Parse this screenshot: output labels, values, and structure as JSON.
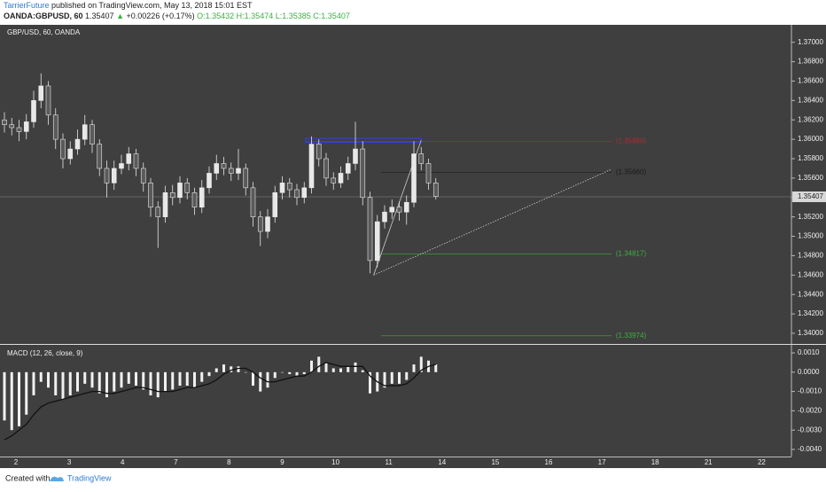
{
  "header": {
    "author": "TarrierFuture",
    "published": "published on TradingView.com, May 13, 2018 15:01 EST",
    "symbol": "OANDA:GBPUSD, 60",
    "last": "1.35407",
    "arrow": "▲",
    "change": "+0.00226 (+0.17%)",
    "open": "O:1.35432",
    "high": "H:1.35474",
    "low": "L:1.35385",
    "close": "C:1.35407"
  },
  "footer": {
    "created": "Created with",
    "brand": "TradingView"
  },
  "chart_data": [
    {
      "type": "candlestick",
      "title": "GBP/USD, 60, OANDA",
      "x_labels": [
        "2",
        "3",
        "4",
        "7",
        "8",
        "9",
        "10",
        "11",
        "14",
        "15",
        "16",
        "17",
        "18",
        "21",
        "22"
      ],
      "open": [
        1.362,
        1.3615,
        1.3612,
        1.3608,
        1.3618,
        1.364,
        1.3655,
        1.3625,
        1.36,
        1.358,
        1.359,
        1.36,
        1.3615,
        1.3595,
        1.357,
        1.3555,
        1.357,
        1.3575,
        1.3585,
        1.357,
        1.3555,
        1.353,
        1.352,
        1.3545,
        1.354,
        1.3555,
        1.3545,
        1.353,
        1.355,
        1.3565,
        1.3575,
        1.357,
        1.3565,
        1.357,
        1.355,
        1.352,
        1.3505,
        1.352,
        1.3545,
        1.3555,
        1.3548,
        1.354,
        1.355,
        1.3595,
        1.358,
        1.356,
        1.3555,
        1.3565,
        1.3575,
        1.359,
        1.354,
        1.3475,
        1.3515,
        1.3525,
        1.353,
        1.3525,
        1.3535,
        1.3585,
        1.3575,
        1.3555
      ],
      "high": [
        1.3628,
        1.3622,
        1.362,
        1.3626,
        1.365,
        1.3668,
        1.366,
        1.3632,
        1.3606,
        1.3598,
        1.361,
        1.3625,
        1.362,
        1.36,
        1.3578,
        1.3578,
        1.3584,
        1.3592,
        1.359,
        1.3576,
        1.356,
        1.3536,
        1.3552,
        1.3553,
        1.3562,
        1.356,
        1.355,
        1.3558,
        1.3572,
        1.3584,
        1.3582,
        1.3576,
        1.359,
        1.3575,
        1.3556,
        1.3526,
        1.3528,
        1.3552,
        1.3562,
        1.356,
        1.3554,
        1.3556,
        1.3603,
        1.36,
        1.3586,
        1.3566,
        1.3572,
        1.3582,
        1.3618,
        1.3598,
        1.3546,
        1.3522,
        1.3532,
        1.3538,
        1.3536,
        1.3542,
        1.3598,
        1.3592,
        1.358,
        1.356
      ],
      "low": [
        1.3607,
        1.3604,
        1.3598,
        1.36,
        1.3612,
        1.3632,
        1.3615,
        1.359,
        1.357,
        1.3574,
        1.3584,
        1.3594,
        1.3586,
        1.3562,
        1.354,
        1.3548,
        1.3564,
        1.3568,
        1.3562,
        1.3546,
        1.352,
        1.3488,
        1.3514,
        1.3532,
        1.3534,
        1.3538,
        1.3522,
        1.3524,
        1.3544,
        1.3558,
        1.3563,
        1.3557,
        1.3558,
        1.3542,
        1.351,
        1.349,
        1.3498,
        1.3514,
        1.3538,
        1.354,
        1.3532,
        1.3534,
        1.3544,
        1.3572,
        1.3552,
        1.3548,
        1.355,
        1.3558,
        1.3568,
        1.3532,
        1.3462,
        1.3468,
        1.3508,
        1.3518,
        1.3516,
        1.3512,
        1.353,
        1.3568,
        1.3548,
        1.3538
      ],
      "close": [
        1.3615,
        1.3612,
        1.3608,
        1.3618,
        1.364,
        1.3655,
        1.3625,
        1.36,
        1.358,
        1.359,
        1.36,
        1.3615,
        1.3595,
        1.357,
        1.3555,
        1.357,
        1.3575,
        1.3585,
        1.357,
        1.3555,
        1.353,
        1.352,
        1.3545,
        1.354,
        1.3555,
        1.3545,
        1.353,
        1.355,
        1.3565,
        1.3575,
        1.357,
        1.3565,
        1.357,
        1.355,
        1.352,
        1.3505,
        1.352,
        1.3545,
        1.3555,
        1.3548,
        1.354,
        1.355,
        1.3595,
        1.358,
        1.356,
        1.3555,
        1.3565,
        1.3575,
        1.359,
        1.354,
        1.3475,
        1.3515,
        1.3525,
        1.353,
        1.3525,
        1.3535,
        1.3585,
        1.3575,
        1.3555,
        1.3541
      ],
      "color": "#e8e8e8",
      "ylim": [
        1.3389,
        1.3718
      ],
      "yticks": [
        {
          "value": 1.37,
          "label": "1.37000"
        },
        {
          "value": 1.368,
          "label": "1.36800"
        },
        {
          "value": 1.366,
          "label": "1.36600"
        },
        {
          "value": 1.364,
          "label": "1.36400"
        },
        {
          "value": 1.362,
          "label": "1.36200"
        },
        {
          "value": 1.36,
          "label": "1.36000"
        },
        {
          "value": 1.358,
          "label": "1.35800"
        },
        {
          "value": 1.356,
          "label": "1.35600"
        },
        {
          "value": 1.354,
          "label": "1.35400"
        },
        {
          "value": 1.352,
          "label": "1.35200"
        },
        {
          "value": 1.35,
          "label": "1.35000"
        },
        {
          "value": 1.348,
          "label": "1.34800"
        },
        {
          "value": 1.346,
          "label": "1.34600"
        },
        {
          "value": 1.344,
          "label": "1.34400"
        },
        {
          "value": 1.342,
          "label": "1.34200"
        },
        {
          "value": 1.34,
          "label": "1.34000"
        }
      ],
      "last_price": 1.35407,
      "levels": [
        {
          "value": 1.3598,
          "label": "(1.35980)",
          "color": "#a33232"
        },
        {
          "value": 1.3566,
          "label": "(1.35660)",
          "color": "#1a1a1a"
        },
        {
          "value": 1.34817,
          "label": "(1.34817)",
          "color": "#3cb043"
        },
        {
          "value": 1.33974,
          "label": "(1.33974)",
          "color": "#3cb043"
        }
      ],
      "rectangle": {
        "top": 1.3601,
        "bottom": 1.3597,
        "color": "#3a3adf"
      },
      "trendlines": [
        {
          "from": [
            50.5,
            1.346
          ],
          "to": [
            83,
            1.3569
          ]
        },
        {
          "from": [
            50.5,
            1.346
          ],
          "to": [
            57,
            1.3599
          ]
        }
      ]
    },
    {
      "type": "macd",
      "title": "MACD (12, 26, close, 9)",
      "histogram": [
        -0.0025,
        -0.003,
        -0.0028,
        -0.0022,
        -0.0012,
        -0.0005,
        -0.0008,
        -0.0012,
        -0.0014,
        -0.0012,
        -0.001,
        -0.0006,
        -0.0008,
        -0.0011,
        -0.0013,
        -0.001,
        -0.0008,
        -0.0006,
        -0.0007,
        -0.0009,
        -0.0012,
        -0.0013,
        -0.001,
        -0.0009,
        -0.0007,
        -0.0007,
        -0.0008,
        -0.0005,
        -0.0002,
        0.0002,
        0.0004,
        0.0003,
        0.0003,
        0,
        -0.0007,
        -0.001,
        -0.0008,
        -0.0003,
        0,
        -0.0001,
        -0.0002,
        -0.0001,
        0.0006,
        0.0008,
        0.0005,
        0.0002,
        0.0002,
        0.0003,
        0.0005,
        0.0001,
        -0.0011,
        -0.001,
        -0.0008,
        -0.0006,
        -0.0006,
        -0.0004,
        0.0004,
        0.0008,
        0.0006,
        0.0004
      ],
      "signal": [
        -0.0035,
        -0.0033,
        -0.003,
        -0.0027,
        -0.0022,
        -0.0018,
        -0.0016,
        -0.0015,
        -0.0014,
        -0.0013,
        -0.0012,
        -0.0011,
        -0.001,
        -0.001,
        -0.0011,
        -0.0011,
        -0.001,
        -0.0009,
        -0.0008,
        -0.0008,
        -0.0009,
        -0.001,
        -0.001,
        -0.001,
        -0.0009,
        -0.0008,
        -0.0008,
        -0.0007,
        -0.0006,
        -0.0004,
        -0.0001,
        0.0001,
        0.0002,
        0.0002,
        0,
        -0.0003,
        -0.0005,
        -0.0005,
        -0.0004,
        -0.0003,
        -0.0002,
        -0.0002,
        0,
        0.0003,
        0.0005,
        0.0004,
        0.0003,
        0.0003,
        0.0003,
        0.0003,
        -0.0002,
        -0.0005,
        -0.0007,
        -0.0007,
        -0.0007,
        -0.0006,
        -0.0003,
        0.0001,
        0.0003,
        0.0004
      ],
      "color": "#f0f0f0",
      "signal_color": "#111111",
      "ylim": [
        -0.00437,
        0.00137
      ],
      "yticks": [
        {
          "value": 0.001,
          "label": "0.0010"
        },
        {
          "value": 0,
          "label": "0.0000"
        },
        {
          "value": -0.001,
          "label": "-0.0010"
        },
        {
          "value": -0.002,
          "label": "-0.0020"
        },
        {
          "value": -0.003,
          "label": "-0.0030"
        },
        {
          "value": -0.004,
          "label": "-0.0040"
        }
      ]
    }
  ]
}
